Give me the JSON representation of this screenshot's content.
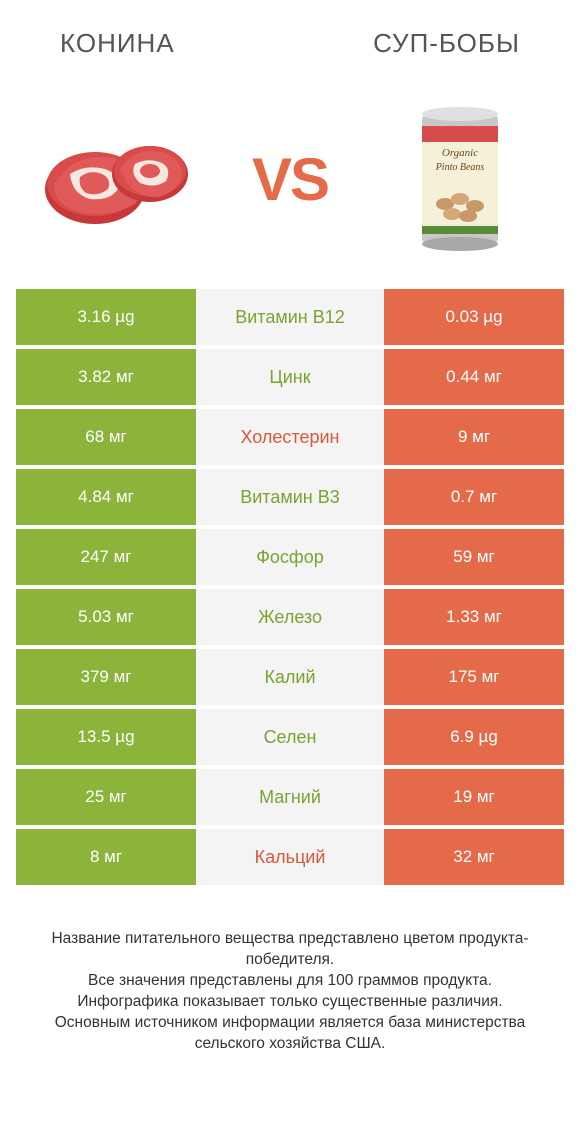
{
  "titles": {
    "left": "КОНИНА",
    "right": "СУП-БОБЫ"
  },
  "vs": "VS",
  "colors": {
    "green": "#8cb33a",
    "orange": "#e56a4a",
    "grey": "#f4f4f4"
  },
  "rows": [
    {
      "left": "3.16 µg",
      "mid": "Витамин B12",
      "right": "0.03 µg",
      "leftColor": "green",
      "rightColor": "orange",
      "midColor": "green"
    },
    {
      "left": "3.82 мг",
      "mid": "Цинк",
      "right": "0.44 мг",
      "leftColor": "green",
      "rightColor": "orange",
      "midColor": "green"
    },
    {
      "left": "68 мг",
      "mid": "Холестерин",
      "right": "9 мг",
      "leftColor": "green",
      "rightColor": "orange",
      "midColor": "orange"
    },
    {
      "left": "4.84 мг",
      "mid": "Витамин B3",
      "right": "0.7 мг",
      "leftColor": "green",
      "rightColor": "orange",
      "midColor": "green"
    },
    {
      "left": "247 мг",
      "mid": "Фосфор",
      "right": "59 мг",
      "leftColor": "green",
      "rightColor": "orange",
      "midColor": "green"
    },
    {
      "left": "5.03 мг",
      "mid": "Железо",
      "right": "1.33 мг",
      "leftColor": "green",
      "rightColor": "orange",
      "midColor": "green"
    },
    {
      "left": "379 мг",
      "mid": "Калий",
      "right": "175 мг",
      "leftColor": "green",
      "rightColor": "orange",
      "midColor": "green"
    },
    {
      "left": "13.5 µg",
      "mid": "Селен",
      "right": "6.9 µg",
      "leftColor": "green",
      "rightColor": "orange",
      "midColor": "green"
    },
    {
      "left": "25 мг",
      "mid": "Магний",
      "right": "19 мг",
      "leftColor": "green",
      "rightColor": "orange",
      "midColor": "green"
    },
    {
      "left": "8 мг",
      "mid": "Кальций",
      "right": "32 мг",
      "leftColor": "green",
      "rightColor": "orange",
      "midColor": "orange"
    }
  ],
  "footer": [
    "Название питательного вещества представлено цветом продукта-победителя.",
    "Все значения представлены для 100 граммов продукта.",
    "Инфографика показывает только существенные различия.",
    "Основным источником информации является база министерства сельского хозяйства США."
  ],
  "canLabel": {
    "line1": "Organic",
    "line2": "Pinto Beans"
  }
}
